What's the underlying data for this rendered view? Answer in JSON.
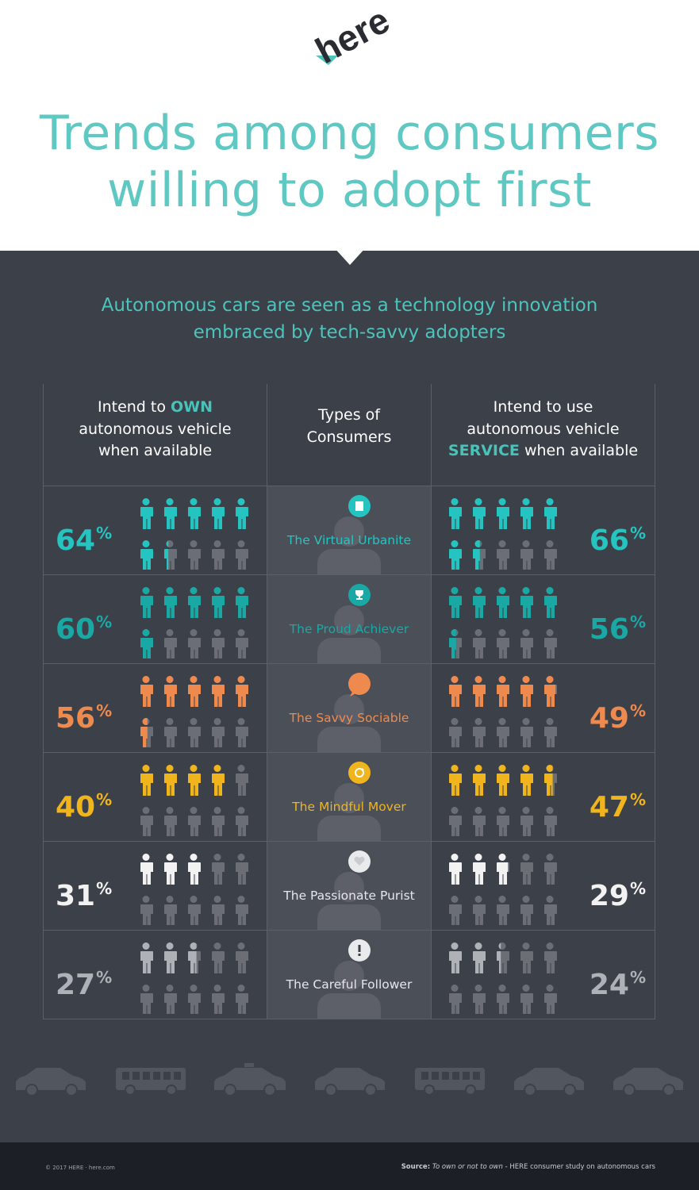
{
  "header": {
    "logo_text": "here",
    "title": "Trends among consumers\nwilling to adopt first"
  },
  "panel": {
    "subtitle": "Autonomous cars are seen as a technology innovation\nembraced by tech-savvy adopters"
  },
  "columns": {
    "own": {
      "pre": "Intend to ",
      "em": "OWN",
      "post": "autonomous vehicle\nwhen available"
    },
    "types": "Types of\nConsumers",
    "service": {
      "pre": "Intend to use\nautonomous vehicle\n",
      "em": "SERVICE",
      "post": " when available"
    }
  },
  "icon_colors": {
    "inactive": "#6b6e75",
    "avatar": "#5d6069",
    "badge_bg": "#ffffff"
  },
  "chart_data": {
    "type": "table",
    "unit": "%",
    "columns": [
      "Intend to OWN autonomous vehicle when available",
      "Types of Consumers",
      "Intend to use autonomous vehicle SERVICE when available"
    ],
    "rows": [
      {
        "type": "The Virtual Urbanite",
        "own": 64,
        "service": 66,
        "color": "#26c4c0",
        "badge": "building-icon"
      },
      {
        "type": "The Proud Achiever",
        "own": 60,
        "service": 56,
        "color": "#1aa8a4",
        "badge": "trophy-icon"
      },
      {
        "type": "The Savvy Sociable",
        "own": 56,
        "service": 49,
        "color": "#ef8a4e",
        "badge": "speech-bubble-icon"
      },
      {
        "type": "The Mindful Mover",
        "own": 40,
        "service": 47,
        "color": "#f0b51c",
        "badge": "refresh-icon"
      },
      {
        "type": "The Passionate Purist",
        "own": 31,
        "service": 29,
        "color": "#f2f2f2",
        "badge": "heart-icon"
      },
      {
        "type": "The Careful Follower",
        "own": 27,
        "service": 24,
        "color": "#aeb1b6",
        "badge": "exclamation-icon"
      }
    ]
  },
  "vehicles": [
    "car-icon",
    "bus-icon",
    "taxi-icon",
    "car-icon",
    "bus-icon",
    "car-icon",
    "car-icon"
  ],
  "footer": {
    "copyright": "© 2017 HERE · here.com",
    "source_label": "Source:",
    "source_title": "To own or not to own",
    "source_rest": " - HERE consumer study on autonomous cars"
  }
}
